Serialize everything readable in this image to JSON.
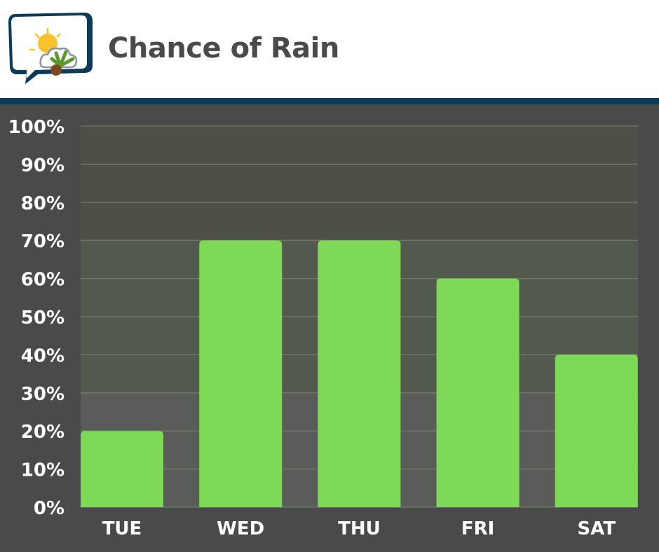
{
  "header": {
    "title": "Chance of Rain",
    "logo_icon": "weather-bubble-logo-icon"
  },
  "colors": {
    "bar": "#7ed957",
    "rule": "#0c3a59",
    "background": "#4a4a4a",
    "band_low": "#5a5c59",
    "band_mid": "#525a4e",
    "band_high": "#4e4f46"
  },
  "chart_data": {
    "type": "bar",
    "title": "Chance of Rain",
    "categories": [
      "TUE",
      "WED",
      "THU",
      "FRI",
      "SAT"
    ],
    "values": [
      20,
      70,
      70,
      60,
      40
    ],
    "ylabel": "",
    "xlabel": "",
    "ylim": [
      0,
      100
    ],
    "yticks": [
      0,
      10,
      20,
      30,
      40,
      50,
      60,
      70,
      80,
      90,
      100
    ],
    "ytick_labels": [
      "0%",
      "10%",
      "20%",
      "30%",
      "40%",
      "50%",
      "60%",
      "70%",
      "80%",
      "90%",
      "100%"
    ],
    "bands": [
      {
        "from": 0,
        "to": 30
      },
      {
        "from": 30,
        "to": 70
      },
      {
        "from": 70,
        "to": 100
      }
    ],
    "grid": true,
    "legend": "none"
  }
}
